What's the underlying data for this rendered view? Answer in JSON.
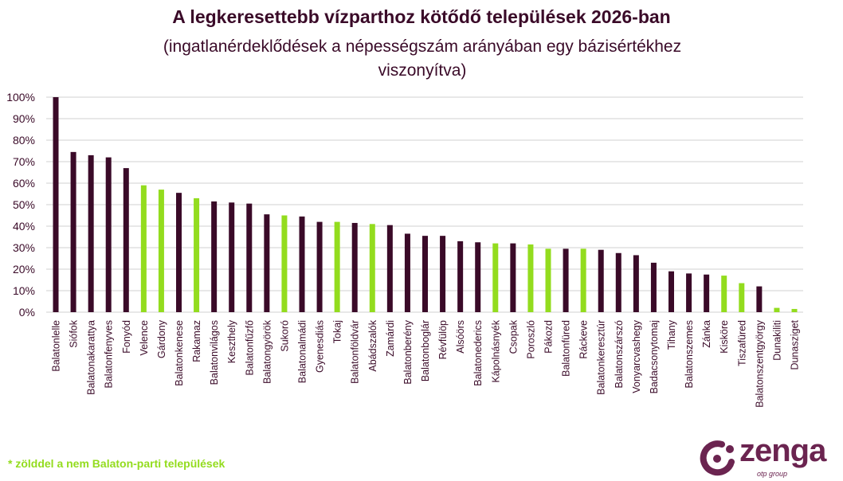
{
  "chart_data": {
    "type": "bar",
    "title": "A legkeresettebb vízparthoz kötődő települések 2026-ban",
    "subtitle": "(ingatlanérdeklődések a népességszám arányában egy bázisértékhez viszonyítva)",
    "xlabel": "",
    "ylabel": "",
    "ylim": [
      0,
      100
    ],
    "yticks": [
      "0%",
      "10%",
      "20%",
      "30%",
      "40%",
      "50%",
      "60%",
      "70%",
      "80%",
      "90%",
      "100%"
    ],
    "grid": true,
    "colors": {
      "balaton": "#3a0a28",
      "non_balaton": "#93dc1e"
    },
    "categories": [
      "Balatonlelle",
      "Siófok",
      "Balatonakarattya",
      "Balatonfenyves",
      "Fonyód",
      "Velence",
      "Gárdony",
      "Balatonkenese",
      "Rakamaz",
      "Balatonvilágos",
      "Keszthely",
      "Balatonfűzfő",
      "Balatongyörök",
      "Sukoró",
      "Balatonalmádi",
      "Gyenesdiás",
      "Tokaj",
      "Balatonföldvár",
      "Abádszalók",
      "Zamárdi",
      "Balatonberény",
      "Balatonboglár",
      "Révfülöp",
      "Alsóörs",
      "Balatonederics",
      "Kápolnásnyék",
      "Csopak",
      "Poroszló",
      "Pákozd",
      "Balatonfüred",
      "Ráckeve",
      "Balatonkeresztúr",
      "Balatonszárszó",
      "Vonyarcvashegy",
      "Badacsonytomaj",
      "Tihany",
      "Balatonszemes",
      "Zánka",
      "Kisköre",
      "Tiszafüred",
      "Balatonszentgyörgy",
      "Dunakiliti",
      "Dunasziget"
    ],
    "values": [
      100,
      74.5,
      73,
      72,
      67,
      59,
      57,
      55.5,
      53,
      51.5,
      51,
      50.5,
      45.5,
      45,
      44.5,
      42,
      42,
      41.5,
      41,
      40.5,
      36.5,
      35.5,
      35.5,
      33,
      32.5,
      32,
      32,
      31.5,
      29.5,
      29.5,
      29.5,
      29,
      27.5,
      26.5,
      23,
      19,
      18,
      17.5,
      17,
      13.5,
      12,
      2,
      1.5
    ],
    "non_balaton": [
      false,
      false,
      false,
      false,
      false,
      true,
      true,
      false,
      true,
      false,
      false,
      false,
      false,
      true,
      false,
      false,
      true,
      false,
      true,
      false,
      false,
      false,
      false,
      false,
      false,
      true,
      false,
      true,
      true,
      false,
      true,
      false,
      false,
      false,
      false,
      false,
      false,
      false,
      true,
      true,
      false,
      true,
      true
    ]
  },
  "footnote": "* zölddel a nem Balaton-parti települések",
  "logo": {
    "name": "zenga",
    "sub": "otp group"
  }
}
